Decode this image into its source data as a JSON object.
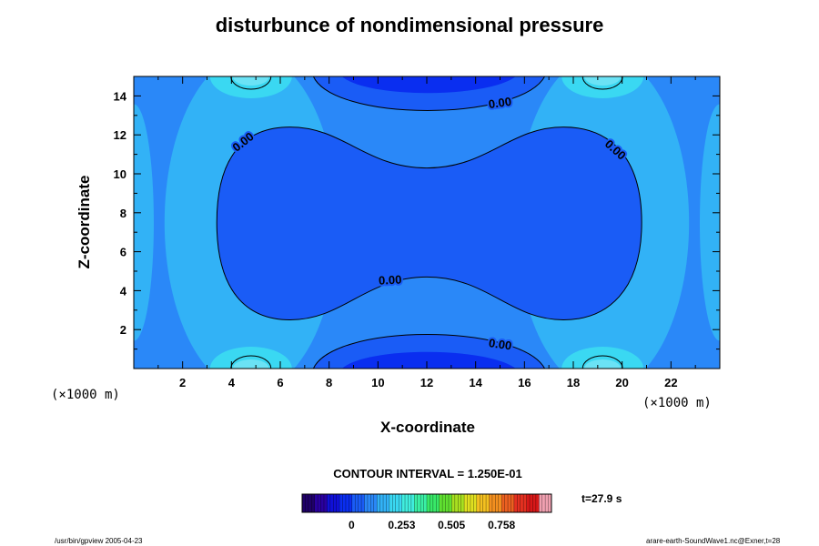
{
  "chart_data": {
    "type": "heatmap",
    "title": "disturbunce of nondimensional pressure",
    "xlabel": "X-coordinate",
    "ylabel": "Z-coordinate",
    "x_unit": "(×1000 m)",
    "y_unit": "(×1000 m)",
    "xlim": [
      0,
      24
    ],
    "ylim": [
      0,
      15
    ],
    "x_ticks": [
      2,
      4,
      6,
      8,
      10,
      12,
      14,
      16,
      18,
      20,
      22
    ],
    "y_ticks": [
      2,
      4,
      6,
      8,
      10,
      12,
      14
    ],
    "x_tick_labels": [
      "2",
      "4",
      "6",
      "8",
      "10",
      "12",
      "14",
      "16",
      "18",
      "20",
      "22"
    ],
    "y_tick_labels": [
      "2",
      "4",
      "6",
      "8",
      "10",
      "12",
      "14"
    ],
    "contour_interval": "CONTOUR INTERVAL = 1.250E-01",
    "contour_label_text": "0.00",
    "contour_labels": [
      {
        "text": "0.00",
        "x": 15.0,
        "z": 13.6,
        "angle": -8
      },
      {
        "text": "0.00",
        "x": 4.5,
        "z": 11.6,
        "angle": -38
      },
      {
        "text": "0.00",
        "x": 19.7,
        "z": 11.2,
        "angle": 42
      },
      {
        "text": "0.00",
        "x": 10.5,
        "z": 4.5,
        "angle": -3
      },
      {
        "text": "0.00",
        "x": 15.0,
        "z": 1.2,
        "angle": 8
      }
    ],
    "colorbar": {
      "min": -0.25,
      "max": 1.01,
      "tick_values": [
        0,
        0.253,
        0.505,
        0.758
      ],
      "tick_labels": [
        "0",
        "0.253",
        "0.505",
        "0.758"
      ],
      "colors": [
        "#1f0068",
        "#2a00a0",
        "#1010d8",
        "#0a2ef0",
        "#1a5cf6",
        "#2a88f8",
        "#32b2f6",
        "#3ad8f2",
        "#40eede",
        "#3af0a6",
        "#38e868",
        "#60e030",
        "#a8e020",
        "#e0e020",
        "#f4c020",
        "#f49020",
        "#ec6020",
        "#e43020",
        "#d81818",
        "#f0a0b0"
      ]
    },
    "field_colors": {
      "level_neg2": "#0a2ef0",
      "level_neg1": "#1a5cf6",
      "level_0": "#2a88f8",
      "level_1": "#32b2f6",
      "level_2": "#3ad8f2"
    },
    "time": "t=27.9 s"
  },
  "footer": {
    "left": "/usr/bin/gpview 2005-04-23",
    "right": "arare-earth-SoundWave1.nc@Exner,t=28"
  }
}
